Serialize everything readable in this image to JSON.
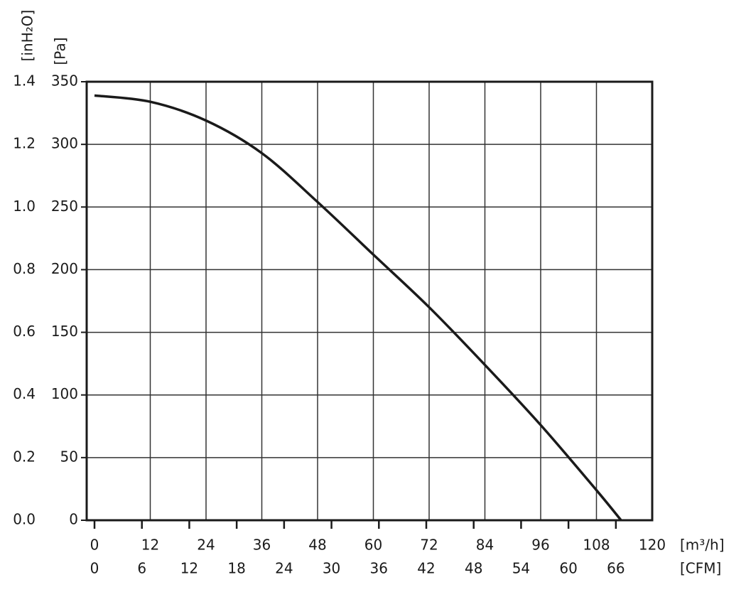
{
  "chart_data": {
    "type": "line",
    "y_label": "[Pa]",
    "y2_label": "[inH₂O]",
    "x_label": "[m³/h]",
    "x2_label": "[CFM]",
    "x": [
      0,
      12,
      24,
      36,
      48,
      60,
      72,
      84,
      96,
      108,
      113.3
    ],
    "values": [
      339,
      334,
      319,
      293,
      254,
      212,
      170,
      124,
      76,
      24,
      0
    ],
    "color": "#1a1a1a",
    "xlim": [
      0,
      120
    ],
    "xticks": [
      0,
      12,
      24,
      36,
      48,
      60,
      72,
      84,
      96,
      108,
      120
    ],
    "x2lim": [
      0,
      70.6
    ],
    "x2ticks": [
      0,
      6,
      12,
      18,
      24,
      30,
      36,
      42,
      48,
      54,
      60,
      66
    ],
    "ylim": [
      0,
      350
    ],
    "yticks": [
      0,
      50,
      100,
      150,
      200,
      250,
      300,
      350
    ],
    "y2lim": [
      0,
      1.4
    ],
    "y2ticks": [
      {
        "value": 0,
        "label": "0.0"
      },
      0.2,
      0.4,
      0.6,
      0.8,
      {
        "value": 1,
        "label": "1.0"
      },
      1.2,
      1.4
    ],
    "grid": true
  }
}
